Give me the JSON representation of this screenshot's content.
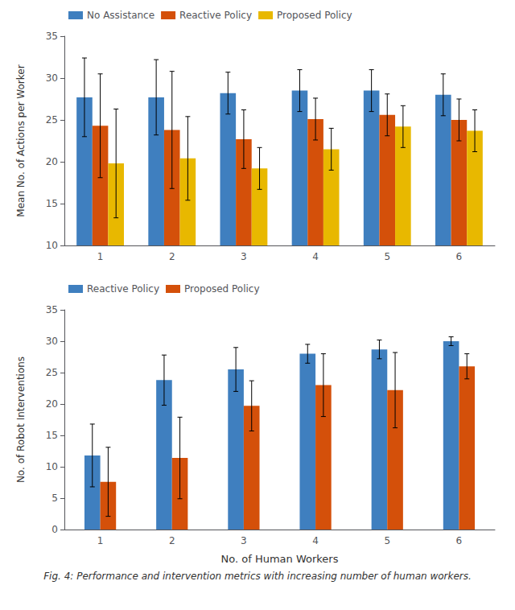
{
  "chart_data": [
    {
      "type": "bar",
      "ylabel": "Mean No. of Actions per Worker",
      "categories": [
        1,
        2,
        3,
        4,
        5,
        6
      ],
      "series": [
        {
          "name": "No Assistance",
          "color": "#3f7fbf",
          "values": [
            27.7,
            27.7,
            28.2,
            28.5,
            28.5,
            28.0
          ],
          "errors": [
            4.7,
            4.5,
            2.5,
            2.5,
            2.5,
            2.5
          ]
        },
        {
          "name": "Reactive Policy",
          "color": "#d4500a",
          "values": [
            24.3,
            23.8,
            22.7,
            25.1,
            25.6,
            25.0
          ],
          "errors": [
            6.2,
            7.0,
            3.5,
            2.5,
            2.5,
            2.5
          ]
        },
        {
          "name": "Proposed Policy",
          "color": "#e8b800",
          "values": [
            19.8,
            20.4,
            19.2,
            21.5,
            24.2,
            23.7
          ],
          "errors": [
            6.5,
            5.0,
            2.5,
            2.5,
            2.5,
            2.5
          ]
        }
      ],
      "ylim": [
        10,
        35
      ],
      "yticks": [
        10,
        15,
        20,
        25,
        30,
        35
      ],
      "grid": false,
      "legend": "upper left"
    },
    {
      "type": "bar",
      "ylabel": "No. of Robot Interventions",
      "xlabel": "No. of Human Workers",
      "categories": [
        1,
        2,
        3,
        4,
        5,
        6
      ],
      "series": [
        {
          "name": "Reactive Policy",
          "color": "#3f7fbf",
          "values": [
            11.8,
            23.8,
            25.5,
            28.0,
            28.7,
            30.0
          ],
          "errors": [
            5.0,
            4.0,
            3.5,
            1.5,
            1.5,
            0.7
          ]
        },
        {
          "name": "Proposed Policy",
          "color": "#d4500a",
          "values": [
            7.6,
            11.4,
            19.7,
            23.0,
            22.2,
            26.0
          ],
          "errors": [
            5.5,
            6.5,
            4.0,
            5.0,
            6.0,
            2.0
          ]
        }
      ],
      "ylim": [
        0,
        35
      ],
      "yticks": [
        0,
        5,
        10,
        15,
        20,
        25,
        30,
        35
      ],
      "grid": false,
      "legend": "upper left",
      "annotations": [
        "Fig. 4: Performance and intervention metrics with increasing number of human workers."
      ]
    }
  ]
}
